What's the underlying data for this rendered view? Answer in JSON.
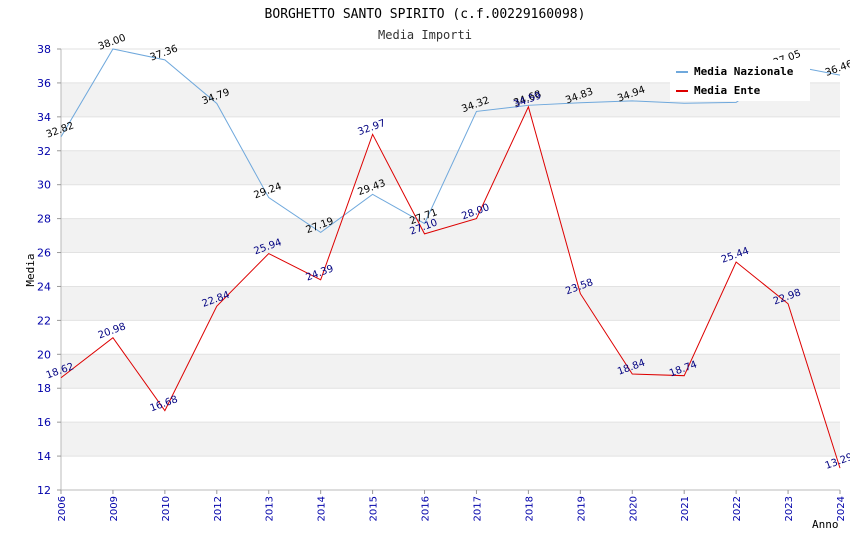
{
  "chart_data": {
    "type": "line",
    "title": "BORGHETTO SANTO SPIRITO (c.f.00229160098)",
    "subtitle": "Media Importi",
    "xlabel": "Anno",
    "ylabel": "Media",
    "categories": [
      "2006",
      "2009",
      "2010",
      "2012",
      "2013",
      "2014",
      "2015",
      "2016",
      "2017",
      "2018",
      "2019",
      "2020",
      "2021",
      "2022",
      "2023",
      "2024"
    ],
    "ylim": [
      12,
      38
    ],
    "yticks": [
      12,
      14,
      16,
      18,
      20,
      22,
      24,
      26,
      28,
      30,
      32,
      34,
      36,
      38
    ],
    "grid": "horizontal bands",
    "legend_position": "top-right",
    "series": [
      {
        "name": "Media Nazionale",
        "color": "#6fa8dc",
        "values": [
          32.82,
          38.0,
          37.36,
          34.79,
          29.24,
          27.19,
          29.43,
          27.71,
          34.32,
          34.68,
          34.83,
          34.94,
          34.8,
          34.85,
          37.05,
          36.46
        ],
        "labels": [
          "32.82",
          "38.00",
          "37.36",
          "34.79",
          "29.24",
          "27.19",
          "29.43",
          "27.71",
          "34.32",
          "34.68",
          "34.83",
          "34.94",
          "",
          "",
          "37.05",
          "36.46"
        ]
      },
      {
        "name": "Media Ente",
        "color": "#dd0000",
        "values": [
          18.62,
          20.98,
          16.68,
          22.84,
          25.94,
          24.39,
          32.97,
          27.1,
          28.0,
          34.59,
          23.58,
          18.84,
          18.74,
          25.44,
          22.98,
          13.29
        ],
        "labels": [
          "18.62",
          "20.98",
          "16.68",
          "22.84",
          "25.94",
          "24.39",
          "32.97",
          "27.10",
          "28.00",
          "34.59",
          "23.58",
          "18.84",
          "18.74",
          "25.44",
          "22.98",
          "13.29"
        ]
      }
    ]
  }
}
